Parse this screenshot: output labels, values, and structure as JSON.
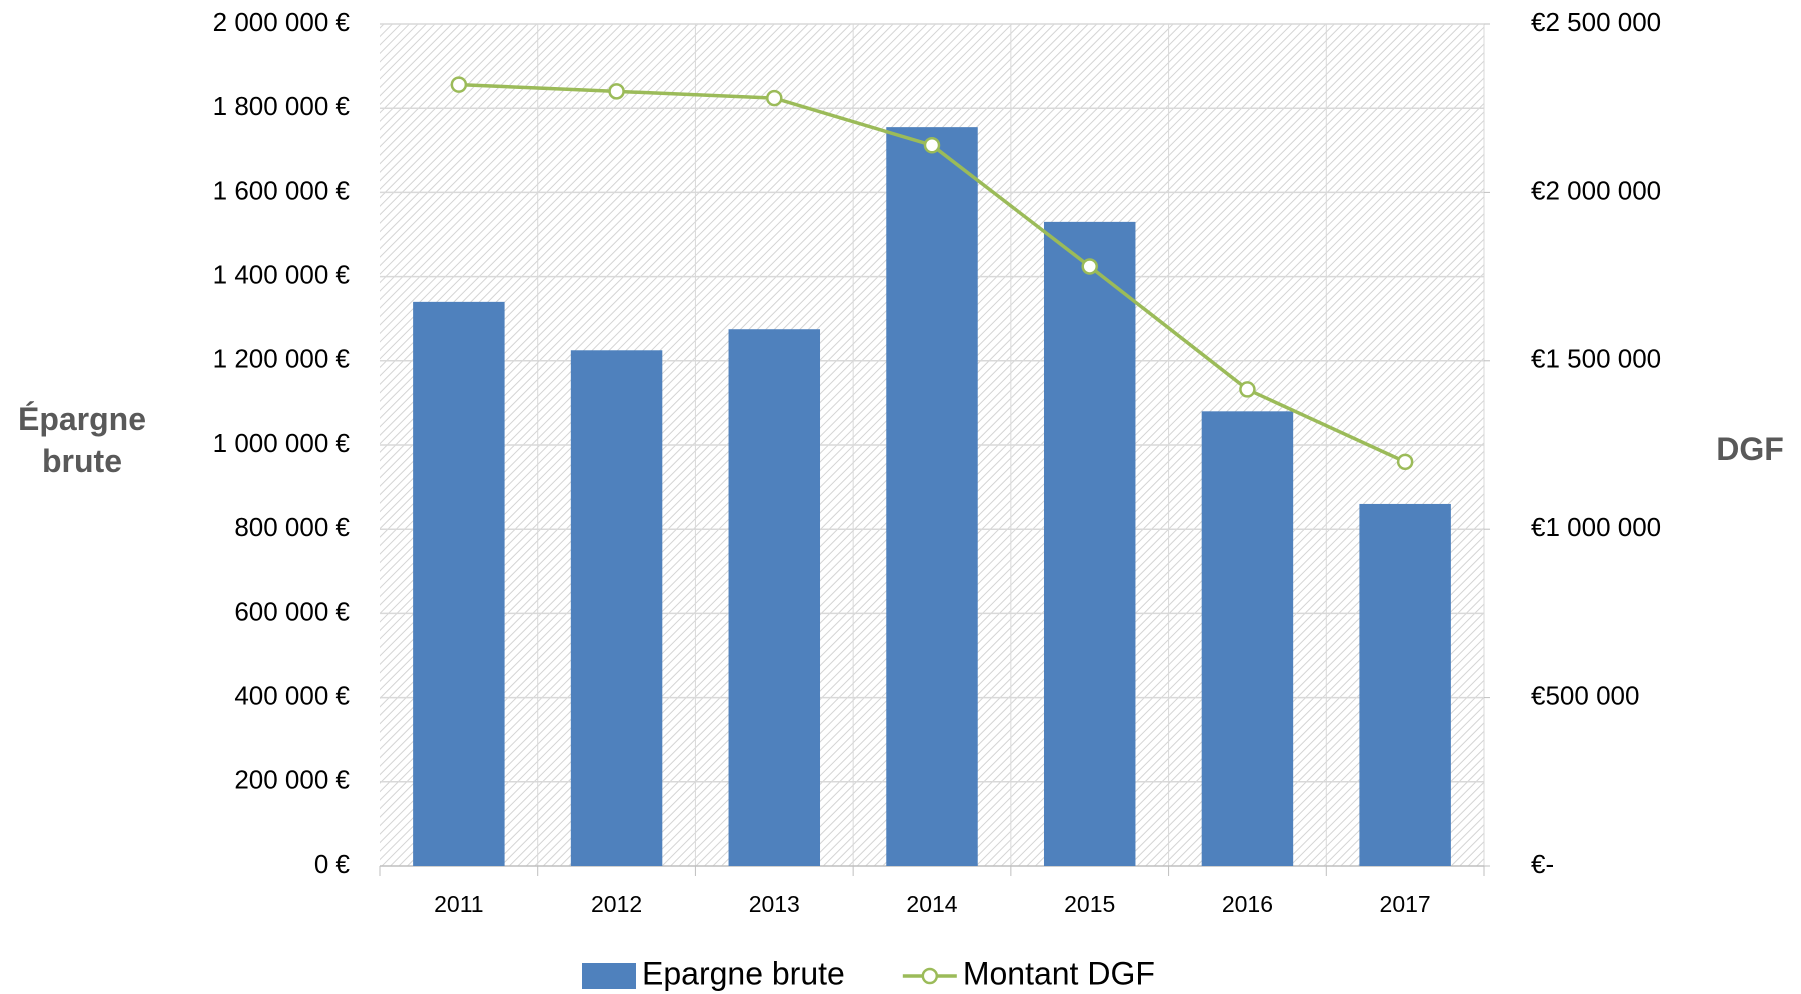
{
  "chart_data": {
    "type": "bar_line",
    "categories": [
      "2011",
      "2012",
      "2013",
      "2014",
      "2015",
      "2016",
      "2017"
    ],
    "series": [
      {
        "name": "Epargne brute",
        "type": "bar",
        "color": "#4f81bd",
        "axis": "y",
        "values": [
          1340000,
          1225000,
          1275000,
          1755000,
          1530000,
          1080000,
          860000
        ]
      },
      {
        "name": "Montant DGF",
        "type": "line",
        "color": "#9bbb59",
        "axis": "y2",
        "values": [
          2320000,
          2300000,
          2280000,
          2140000,
          1780000,
          1415000,
          1200000
        ]
      }
    ],
    "ylabel": "Épargne brute",
    "y2label": "DGF",
    "ylim": [
      0,
      2000000
    ],
    "yticks": [
      {
        "value": 0,
        "label": "0 €"
      },
      {
        "value": 200000,
        "label": "200 000 €"
      },
      {
        "value": 400000,
        "label": "400 000 €"
      },
      {
        "value": 600000,
        "label": "600 000 €"
      },
      {
        "value": 800000,
        "label": "800 000 €"
      },
      {
        "value": 1000000,
        "label": "1 000 000 €"
      },
      {
        "value": 1200000,
        "label": "1 200 000 €"
      },
      {
        "value": 1400000,
        "label": "1 400 000 €"
      },
      {
        "value": 1600000,
        "label": "1 600 000 €"
      },
      {
        "value": 1800000,
        "label": "1 800 000 €"
      },
      {
        "value": 2000000,
        "label": "2 000 000 €"
      }
    ],
    "y2lim": [
      0,
      2500000
    ],
    "y2ticks": [
      {
        "value": 0,
        "label": "€-"
      },
      {
        "value": 500000,
        "label": "€500 000"
      },
      {
        "value": 1000000,
        "label": "€1 000 000"
      },
      {
        "value": 1500000,
        "label": "€1 500 000"
      },
      {
        "value": 2000000,
        "label": "€2 000 000"
      },
      {
        "value": 2500000,
        "label": "€2 500 000"
      }
    ],
    "grid": true,
    "legend": "bottom"
  }
}
